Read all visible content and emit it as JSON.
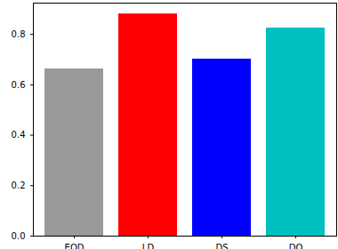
{
  "chart_data": {
    "type": "bar",
    "categories": [
      "EOD",
      "LD",
      "DS",
      "DO"
    ],
    "values": [
      0.663,
      0.881,
      0.702,
      0.825
    ],
    "colors": [
      "#999999",
      "#ff0000",
      "#0000ff",
      "#00bfbf"
    ],
    "ylim": [
      0,
      0.924
    ],
    "yticks": [
      {
        "value": 0,
        "label": "0.0"
      },
      0.2,
      0.4,
      0.6,
      0.8
    ],
    "grid": false
  }
}
